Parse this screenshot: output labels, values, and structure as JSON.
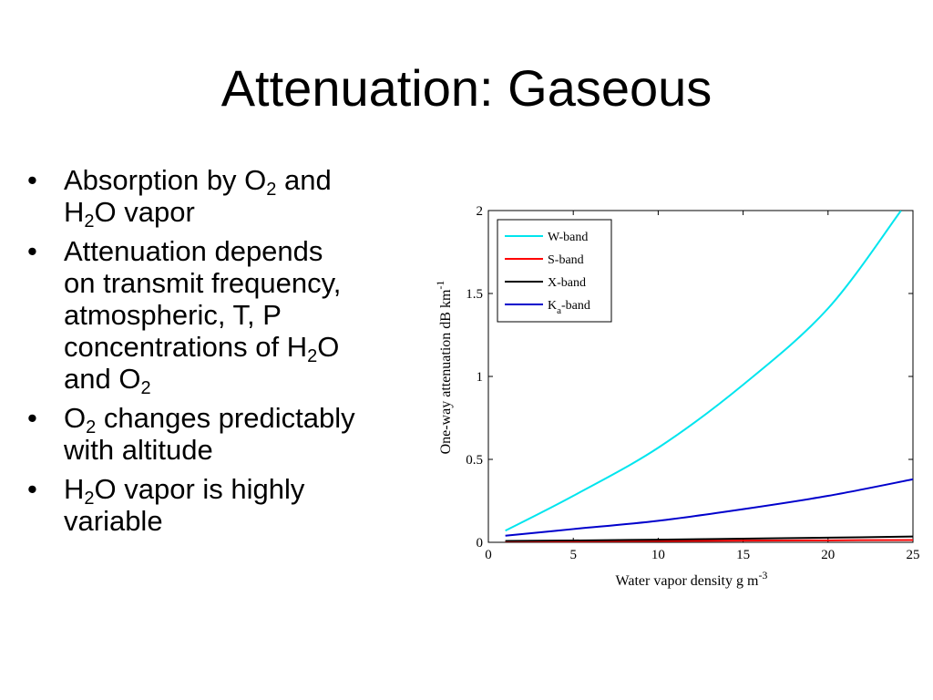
{
  "slide": {
    "title": "Attenuation: Gaseous",
    "bullets": [
      [
        [
          {
            "t": "Absorption by O"
          },
          {
            "sub": "2"
          },
          {
            "t": " and"
          }
        ],
        [
          {
            "t": "H"
          },
          {
            "sub": "2"
          },
          {
            "t": "O vapor"
          }
        ]
      ],
      [
        [
          {
            "t": "Attenuation depends"
          }
        ],
        [
          {
            "t": "on transmit frequency,"
          }
        ],
        [
          {
            "t": "atmospheric, T, P"
          }
        ],
        [
          {
            "t": "concentrations of H"
          },
          {
            "sub": "2"
          },
          {
            "t": "O"
          }
        ],
        [
          {
            "t": "and O"
          },
          {
            "sub": "2"
          }
        ]
      ],
      [
        [
          {
            "t": "O"
          },
          {
            "sub": "2"
          },
          {
            "t": " changes predictably"
          }
        ],
        [
          {
            "t": "with altitude"
          }
        ]
      ],
      [
        [
          {
            "t": "H"
          },
          {
            "sub": "2"
          },
          {
            "t": "O vapor is highly"
          }
        ],
        [
          {
            "t": "variable"
          }
        ]
      ]
    ]
  },
  "chart_data": {
    "type": "line",
    "xlabel": "Water vapor density g m",
    "xlabel_sup": "-3",
    "ylabel": "One-way attenuation dB km",
    "ylabel_sup": "-1",
    "xlim": [
      0,
      25
    ],
    "ylim": [
      0,
      2
    ],
    "xticks": [
      "0",
      "5",
      "10",
      "15",
      "20",
      "25"
    ],
    "yticks": [
      "0",
      "0.5",
      "1",
      "1.5",
      "2"
    ],
    "grid": false,
    "legend_position": "top-left",
    "series": [
      {
        "name": "W-band",
        "name_sub": "",
        "name_tail": "",
        "color": "#00e5ee",
        "x": [
          1,
          5,
          10,
          15,
          20,
          24.3
        ],
        "y": [
          0.07,
          0.28,
          0.57,
          0.95,
          1.41,
          2.0
        ]
      },
      {
        "name": "S-band",
        "name_sub": "",
        "name_tail": "",
        "color": "#ff0000",
        "x": [
          1,
          5,
          10,
          15,
          20,
          25
        ],
        "y": [
          0.005,
          0.006,
          0.008,
          0.01,
          0.012,
          0.014
        ]
      },
      {
        "name": "X-band",
        "name_sub": "",
        "name_tail": "",
        "color": "#000000",
        "x": [
          1,
          5,
          10,
          15,
          20,
          25
        ],
        "y": [
          0.008,
          0.011,
          0.016,
          0.022,
          0.028,
          0.035
        ]
      },
      {
        "name": "K",
        "name_sub": "a",
        "name_tail": "-band",
        "color": "#0000cc",
        "x": [
          1,
          5,
          10,
          15,
          20,
          25
        ],
        "y": [
          0.04,
          0.08,
          0.13,
          0.2,
          0.28,
          0.38
        ]
      }
    ]
  }
}
